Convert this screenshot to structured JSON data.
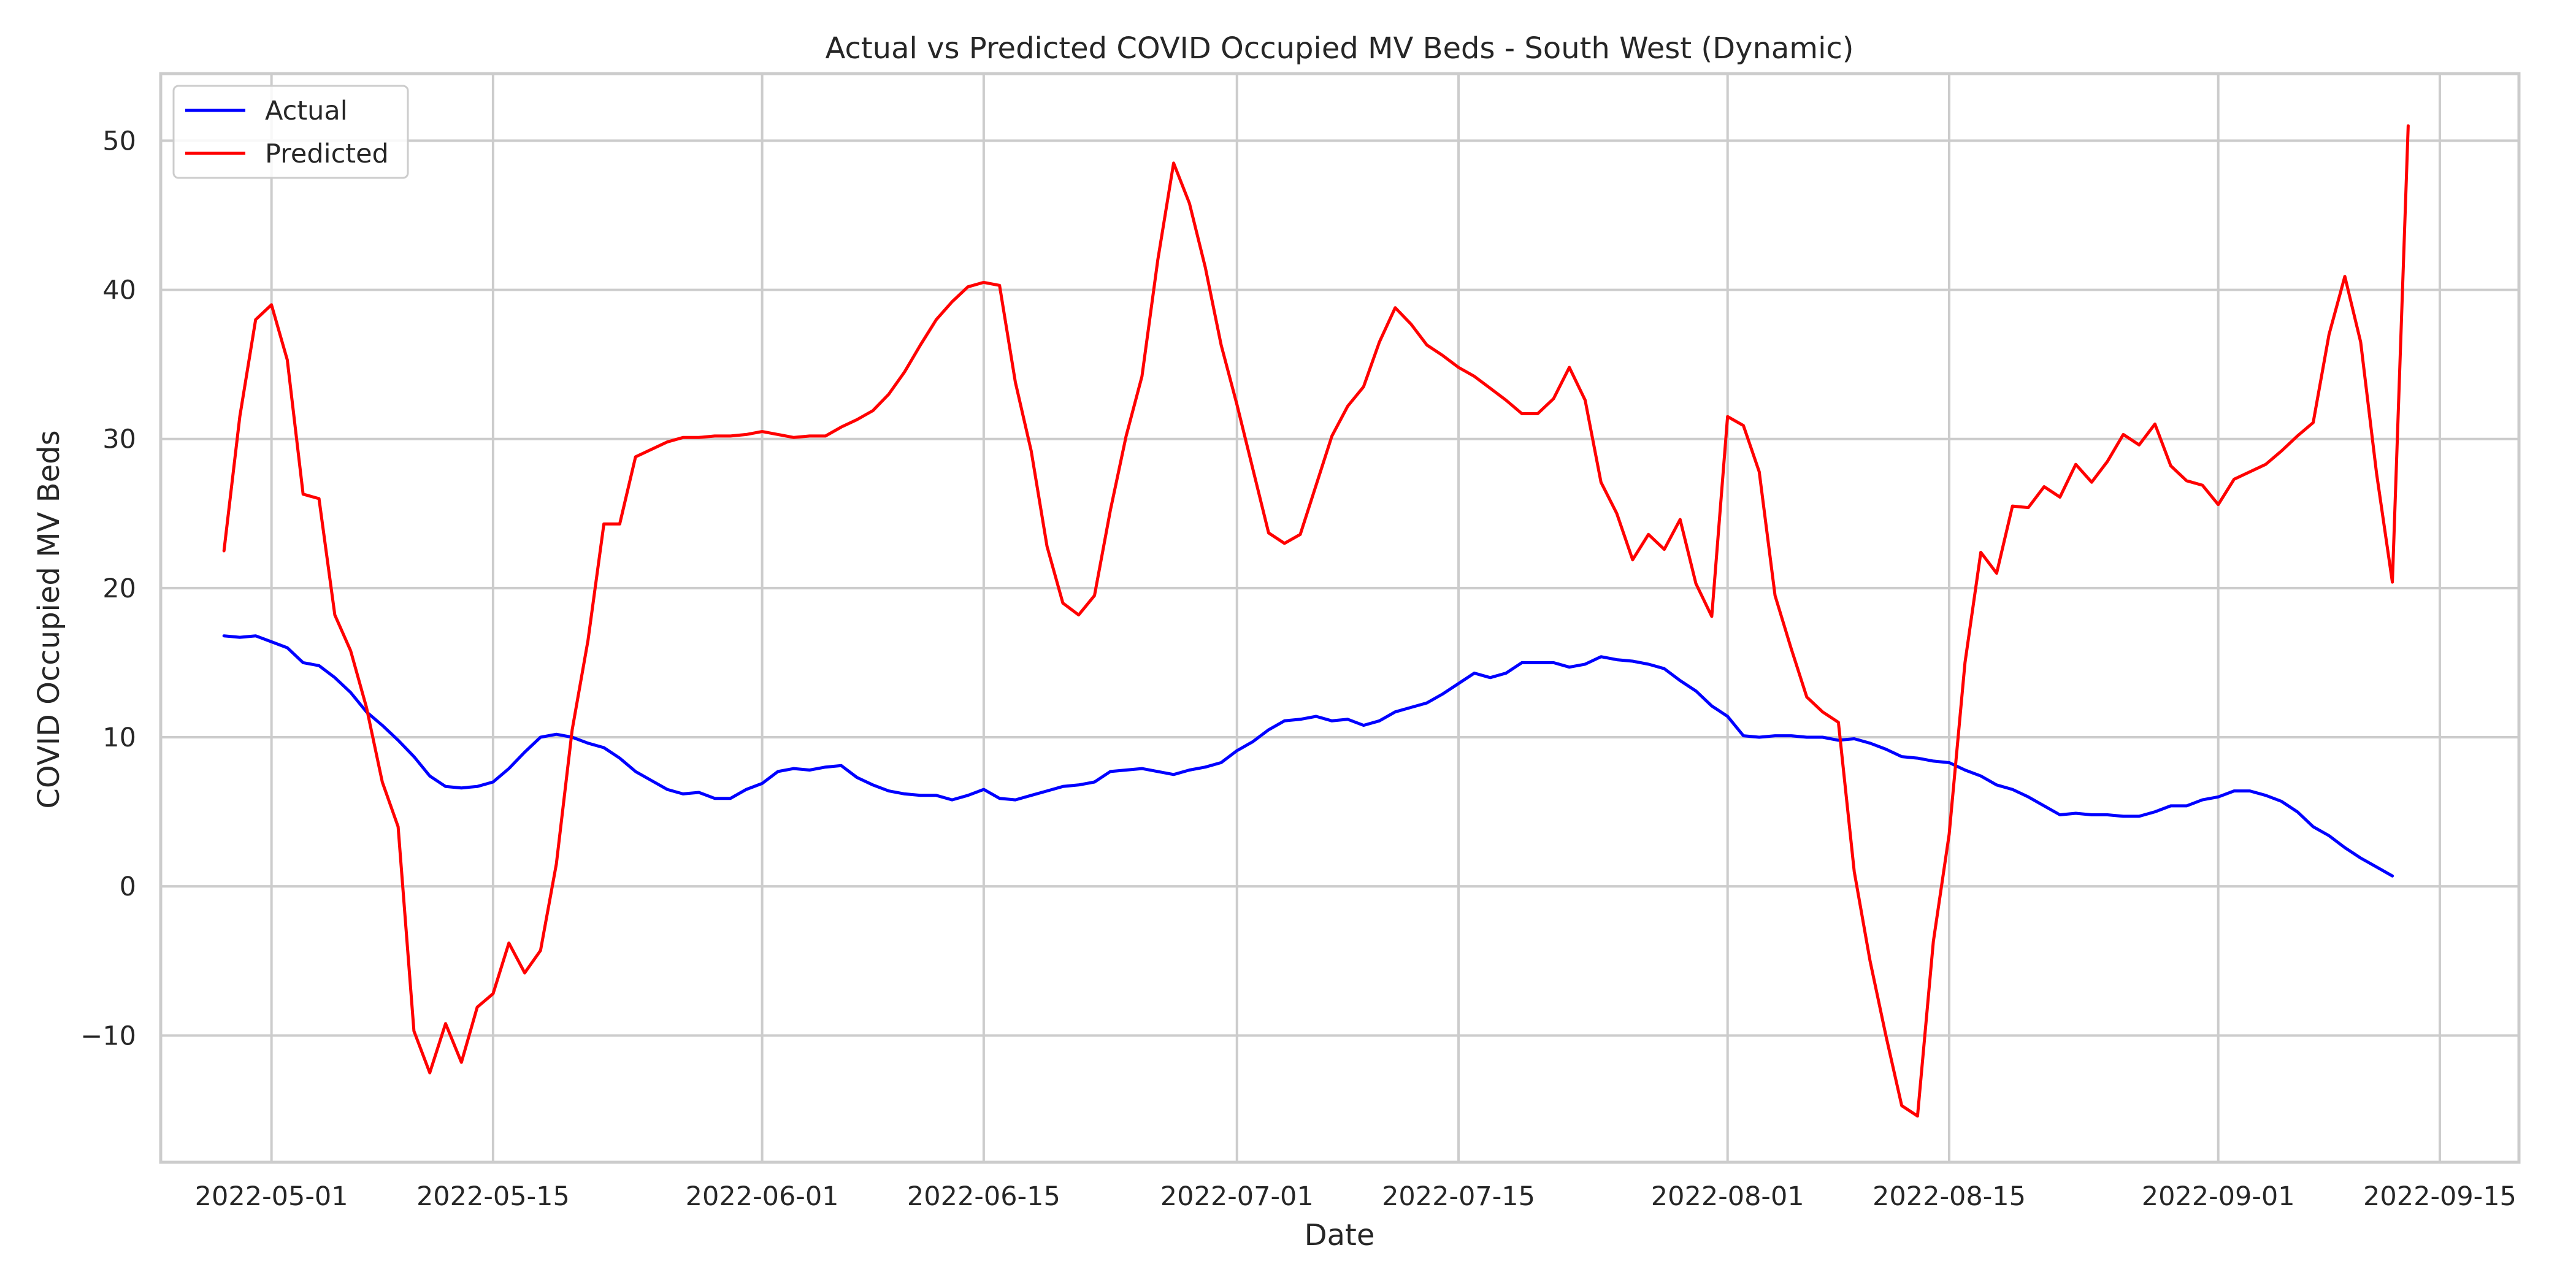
{
  "chart_data": {
    "type": "line",
    "title": "Actual vs Predicted COVID Occupied MV Beds - South West (Dynamic)",
    "xlabel": "Date",
    "ylabel": "COVID Occupied MV Beds",
    "x_start": "2022-04-28",
    "xlim": [
      "2022-04-24",
      "2022-09-20"
    ],
    "ylim": [
      -18.5,
      54.5
    ],
    "x_ticks": [
      "2022-05-01",
      "2022-05-15",
      "2022-06-01",
      "2022-06-15",
      "2022-07-01",
      "2022-07-15",
      "2022-08-01",
      "2022-08-15",
      "2022-09-01",
      "2022-09-15"
    ],
    "y_ticks": [
      -10,
      0,
      10,
      20,
      30,
      40,
      50
    ],
    "y_tick_labels": [
      "−10",
      "0",
      "10",
      "20",
      "30",
      "40",
      "50"
    ],
    "grid": true,
    "legend_position": "top-left",
    "series": [
      {
        "name": "Actual",
        "color": "#0000ff",
        "values": [
          16.8,
          16.7,
          16.8,
          16.4,
          16.0,
          15.0,
          14.8,
          14.0,
          13.0,
          11.7,
          10.8,
          9.8,
          8.7,
          7.4,
          6.7,
          6.6,
          6.7,
          7.0,
          7.9,
          9.0,
          10.0,
          10.2,
          10.0,
          9.6,
          9.3,
          8.6,
          7.7,
          7.1,
          6.5,
          6.2,
          6.3,
          5.9,
          5.9,
          6.5,
          6.9,
          7.7,
          7.9,
          7.8,
          8.0,
          8.1,
          7.3,
          6.8,
          6.4,
          6.2,
          6.1,
          6.1,
          5.8,
          6.1,
          6.5,
          5.9,
          5.8,
          6.1,
          6.4,
          6.7,
          6.8,
          7.0,
          7.7,
          7.8,
          7.9,
          7.7,
          7.5,
          7.8,
          8.0,
          8.3,
          9.1,
          9.7,
          10.5,
          11.1,
          11.2,
          11.4,
          11.1,
          11.2,
          10.8,
          11.1,
          11.7,
          12.0,
          12.3,
          12.9,
          13.6,
          14.3,
          14.0,
          14.3,
          15.0,
          15.0,
          15.0,
          14.7,
          14.9,
          15.4,
          15.2,
          15.1,
          14.9,
          14.6,
          13.8,
          13.1,
          12.1,
          11.4,
          10.1,
          10.0,
          10.1,
          10.1,
          10.0,
          10.0,
          9.8,
          9.9,
          9.6,
          9.2,
          8.7,
          8.6,
          8.4,
          8.3,
          7.8,
          7.4,
          6.8,
          6.5,
          6.0,
          5.4,
          4.8,
          4.9,
          4.8,
          4.8,
          4.7,
          4.7,
          5.0,
          5.4,
          5.4,
          5.8,
          6.0,
          6.4,
          6.4,
          6.1,
          5.7,
          5.0,
          4.0,
          3.4,
          2.6,
          1.9,
          1.3,
          0.7
        ]
      },
      {
        "name": "Predicted",
        "color": "#ff0000",
        "values": [
          22.5,
          31.5,
          38.0,
          39.0,
          35.3,
          26.3,
          26.0,
          18.2,
          15.8,
          12.0,
          7.0,
          4.0,
          -9.7,
          -12.5,
          -9.2,
          -11.8,
          -8.1,
          -7.2,
          -3.8,
          -5.8,
          -4.3,
          1.5,
          10.5,
          16.5,
          24.3,
          24.3,
          28.8,
          29.3,
          29.8,
          30.1,
          30.1,
          30.2,
          30.2,
          30.3,
          30.5,
          30.3,
          30.1,
          30.2,
          30.2,
          30.8,
          31.3,
          31.9,
          33.0,
          34.5,
          36.3,
          38.0,
          39.2,
          40.2,
          40.5,
          40.3,
          33.8,
          29.2,
          22.8,
          19.0,
          18.2,
          19.5,
          25.2,
          30.2,
          34.2,
          42.0,
          48.5,
          45.8,
          41.5,
          36.3,
          32.3,
          28.0,
          23.7,
          23.0,
          23.6,
          26.9,
          30.2,
          32.2,
          33.5,
          36.5,
          38.8,
          37.7,
          36.3,
          35.6,
          34.8,
          34.2,
          33.4,
          32.6,
          31.7,
          31.7,
          32.7,
          34.8,
          32.6,
          27.1,
          25.0,
          21.9,
          23.6,
          22.6,
          24.6,
          20.3,
          18.1,
          31.5,
          30.9,
          27.8,
          19.5,
          16.0,
          12.7,
          11.7,
          11.0,
          1.0,
          -5.0,
          -10.0,
          -14.7,
          -15.4,
          -3.7,
          3.5,
          15.0,
          22.4,
          21.0,
          25.5,
          25.4,
          26.8,
          26.1,
          28.3,
          27.1,
          28.5,
          30.3,
          29.6,
          31.0,
          28.2,
          27.2,
          26.9,
          25.6,
          27.3,
          27.8,
          28.3,
          29.2,
          30.2,
          31.1,
          37.0,
          40.9,
          36.5,
          27.7,
          20.4,
          51.0
        ]
      }
    ]
  }
}
